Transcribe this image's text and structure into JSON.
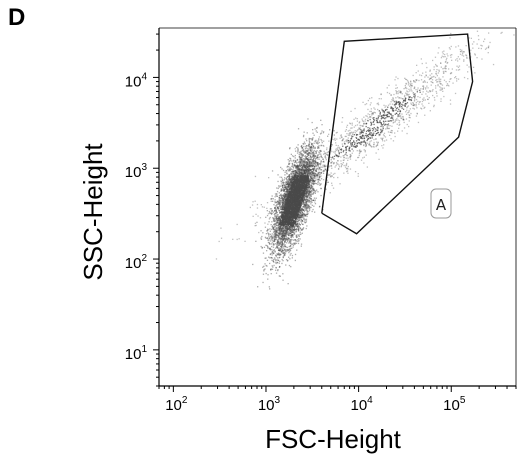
{
  "panel_label": "D",
  "chart_data": {
    "type": "scatter",
    "title": "",
    "xlabel": "FSC-Height",
    "ylabel": "SSC-Height",
    "x_scale": "log",
    "y_scale": "log",
    "xlim": [
      70,
      500000
    ],
    "ylim": [
      4,
      35000
    ],
    "x_ticks": [
      {
        "value": 100,
        "base": "10",
        "exp": "2"
      },
      {
        "value": 1000,
        "base": "10",
        "exp": "3"
      },
      {
        "value": 10000,
        "base": "10",
        "exp": "4"
      },
      {
        "value": 100000,
        "base": "10",
        "exp": "5"
      }
    ],
    "y_ticks": [
      {
        "value": 10,
        "base": "10",
        "exp": "1"
      },
      {
        "value": 100,
        "base": "10",
        "exp": "2"
      },
      {
        "value": 1000,
        "base": "10",
        "exp": "3"
      },
      {
        "value": 10000,
        "base": "10",
        "exp": "4"
      }
    ],
    "point_color": "#4a4a4a",
    "populations": [
      {
        "x_center": 2000,
        "y_center": 450,
        "log_sx": 0.12,
        "log_sy": 0.28,
        "corr": 0.7,
        "density": "high"
      },
      {
        "x_center": 15000,
        "y_center": 3000,
        "log_sx": 0.55,
        "log_sy": 0.45,
        "corr": 0.95,
        "density": "low"
      }
    ],
    "gate": {
      "label": "A",
      "vertices": [
        [
          4000,
          320
        ],
        [
          7000,
          25000
        ],
        [
          150000,
          30000
        ],
        [
          170000,
          9000
        ],
        [
          120000,
          2200
        ],
        [
          9500,
          190
        ],
        [
          4000,
          320
        ]
      ]
    }
  }
}
